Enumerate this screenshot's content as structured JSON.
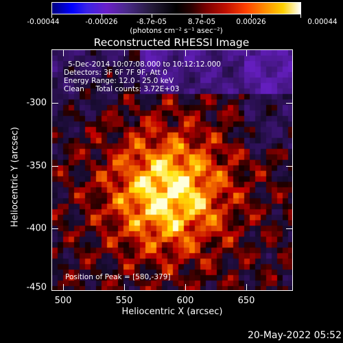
{
  "colorbar": {
    "ticks": [
      "-0.00044",
      "-0.00026",
      "-8.7e-05",
      "8.7e-05",
      "0.00026",
      "0.00044"
    ],
    "units_label": "(photons cm⁻² s⁻¹ asec⁻²)"
  },
  "title": "Reconstructed RHESSI Image",
  "info": {
    "line1": "5-Dec-2014 10:07:08.000 to 10:12:12.000",
    "line2": "Detectors: 3F 6F 7F 9F, Att 0",
    "line3": "Energy Range: 12.0 - 25.0 keV",
    "line4": "Clean     Total counts: 3.72E+03",
    "peak": "Position of Peak = [580,-379]"
  },
  "axes": {
    "xlabel": "Heliocentric X (arcsec)",
    "ylabel": "Heliocentric Y (arcsec)",
    "xticks": [
      "500",
      "550",
      "600",
      "650"
    ],
    "yticks": [
      "-300",
      "-350",
      "-400",
      "-450"
    ]
  },
  "datestamp": "20-May-2022 05:52",
  "colors": {
    "negative": "#2010c0",
    "zero": "#000000",
    "positive_low": "#b01000",
    "positive_mid": "#ff7000",
    "positive_high": "#ffff80"
  }
}
